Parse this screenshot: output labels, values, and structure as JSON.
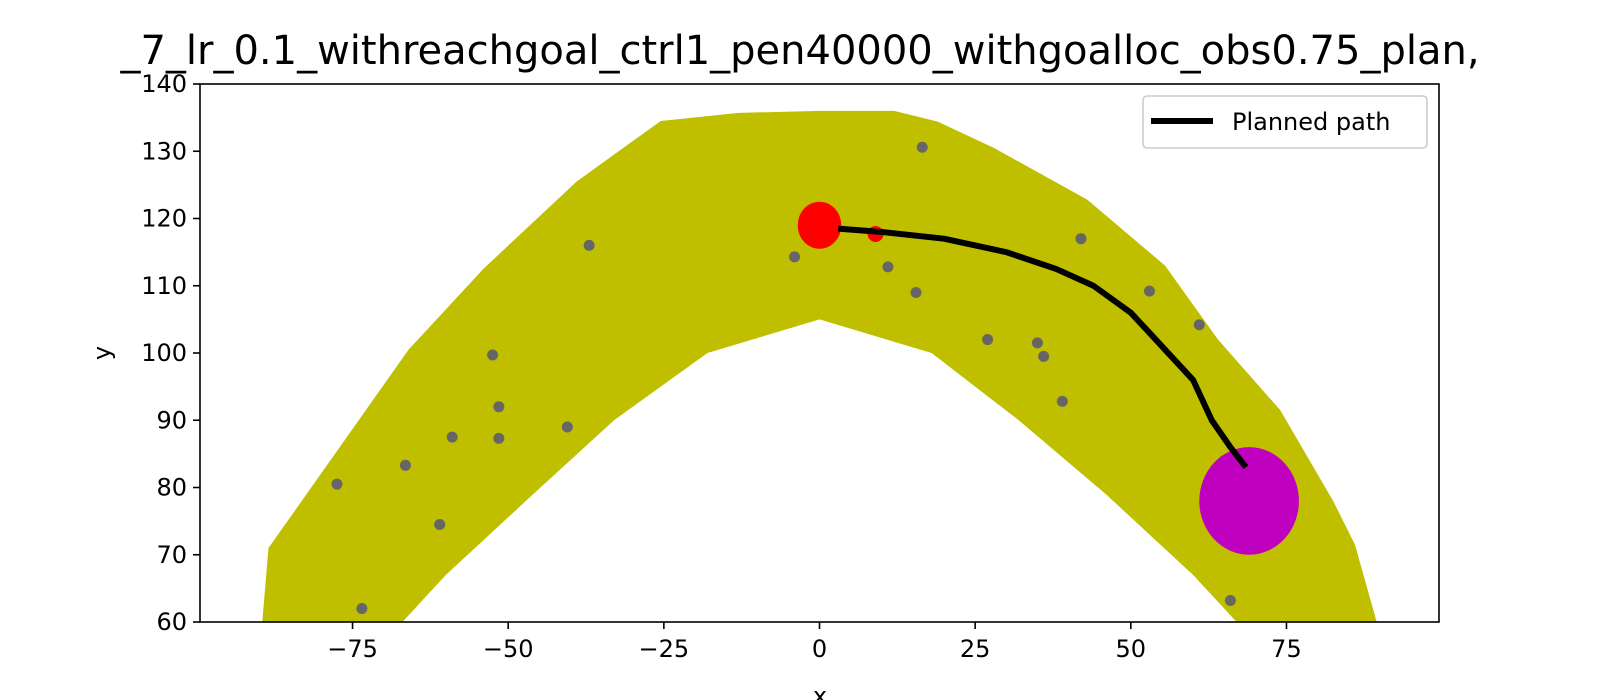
{
  "chart_data": {
    "type": "scatter",
    "title": "_7_lr_0.1_withreachgoal_ctrl1_pen40000_withgoalloc_obs0.75_plan,",
    "xlabel": "x",
    "ylabel": "y",
    "xlim": [
      -99.5,
      99.5
    ],
    "ylim": [
      60,
      140
    ],
    "xticks": [
      -75,
      -50,
      -25,
      0,
      25,
      50,
      75
    ],
    "xtick_labels": [
      "−75",
      "−50",
      "−25",
      "0",
      "25",
      "50",
      "75"
    ],
    "yticks": [
      60,
      70,
      80,
      90,
      100,
      110,
      120,
      130,
      140
    ],
    "ytick_labels": [
      "60",
      "70",
      "80",
      "90",
      "100",
      "110",
      "120",
      "130",
      "140"
    ],
    "grid": false,
    "legend": {
      "position": "upper-right",
      "entries": [
        "Planned path"
      ]
    },
    "colors": {
      "corridor": "#bfbf00",
      "path": "#000000",
      "start": "#ff0000",
      "goal": "#bf00bf",
      "obstacles": "#666666"
    },
    "corridor_outer": [
      [
        -89.5,
        60
      ],
      [
        -88.5,
        71
      ],
      [
        -66,
        100.5
      ],
      [
        -54,
        112.5
      ],
      [
        -39,
        125.5
      ],
      [
        -25.5,
        134.5
      ],
      [
        -13,
        135.7
      ],
      [
        0,
        136
      ],
      [
        12,
        136
      ],
      [
        19,
        134.4
      ],
      [
        28,
        130.5
      ],
      [
        43,
        122.8
      ],
      [
        55.5,
        113
      ],
      [
        64,
        102
      ],
      [
        74,
        91.5
      ],
      [
        82.5,
        78
      ],
      [
        86,
        71.5
      ],
      [
        89.5,
        60
      ]
    ],
    "corridor_inner": [
      [
        -67,
        60
      ],
      [
        -60,
        67
      ],
      [
        -46,
        79
      ],
      [
        -33,
        90
      ],
      [
        -18,
        100
      ],
      [
        0,
        105
      ],
      [
        18,
        100
      ],
      [
        32,
        90
      ],
      [
        46,
        79
      ],
      [
        60,
        67
      ],
      [
        67,
        60
      ]
    ],
    "planned_path": [
      [
        3,
        118.5
      ],
      [
        10,
        118
      ],
      [
        20,
        117
      ],
      [
        30,
        115
      ],
      [
        38,
        112.5
      ],
      [
        44,
        110
      ],
      [
        50,
        106
      ],
      [
        55,
        101
      ],
      [
        60,
        96
      ],
      [
        63,
        90
      ],
      [
        66,
        86
      ],
      [
        68.5,
        83
      ]
    ],
    "start": {
      "x": 0,
      "y": 119,
      "radius": 3.5
    },
    "start_marker_small": {
      "x": 9,
      "y": 117.7
    },
    "goal": {
      "x": 69,
      "y": 78,
      "radius": 8
    },
    "obstacles": [
      [
        -77.5,
        80.5
      ],
      [
        -73.5,
        62
      ],
      [
        -66.5,
        83.3
      ],
      [
        -61,
        74.5
      ],
      [
        -59,
        87.5
      ],
      [
        -52.5,
        99.7
      ],
      [
        -51.5,
        92
      ],
      [
        -51.5,
        87.3
      ],
      [
        -40.5,
        89
      ],
      [
        -37,
        116
      ],
      [
        -4,
        114.3
      ],
      [
        11,
        112.8
      ],
      [
        15.5,
        109
      ],
      [
        16.5,
        130.6
      ],
      [
        27,
        102
      ],
      [
        35,
        101.5
      ],
      [
        36,
        99.5
      ],
      [
        39,
        92.8
      ],
      [
        42,
        117
      ],
      [
        53,
        109.2
      ],
      [
        61,
        104.2
      ],
      [
        65,
        84
      ],
      [
        66,
        63.2
      ],
      [
        73,
        72.3
      ]
    ]
  }
}
